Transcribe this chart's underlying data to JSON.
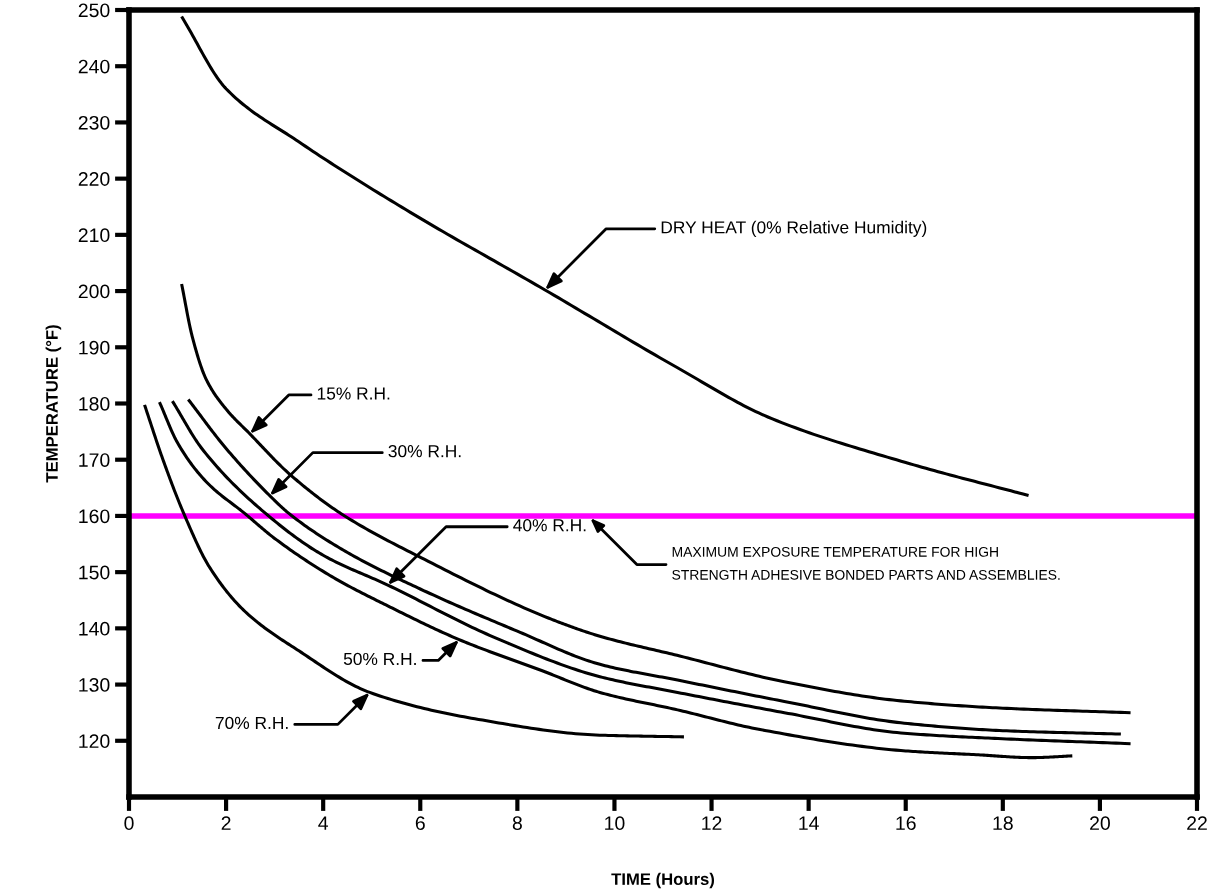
{
  "chart_data": {
    "type": "line",
    "xlabel": "TIME (Hours)",
    "ylabel": "TEMPERATURE (°F)",
    "xlim": [
      0,
      22
    ],
    "ylim": [
      110,
      250
    ],
    "xticks": [
      0,
      2,
      4,
      6,
      8,
      10,
      12,
      14,
      16,
      18,
      20,
      22
    ],
    "yticks": [
      120,
      130,
      140,
      150,
      160,
      170,
      180,
      190,
      200,
      210,
      220,
      230,
      240,
      250
    ],
    "series": [
      {
        "color": "#000000",
        "x": [
          1.1,
          2,
          3.49,
          5.7,
          8.57,
          11.29,
          13.16,
          16,
          18.5
        ],
        "values": [
          248.6,
          236,
          226.6,
          214.5,
          200.2,
          186.4,
          177.6,
          169.5,
          163.7
        ]
      },
      {
        "color": "#000000",
        "x": [
          1.09,
          1.3,
          1.59,
          2,
          2.49,
          3.3,
          4.37,
          6.08,
          8.65,
          9.7,
          11.29,
          13.5,
          15.9,
          18,
          20.6
        ],
        "values": [
          201,
          192,
          184.3,
          179,
          174.6,
          167.5,
          160.4,
          152.3,
          141.8,
          138.6,
          135.2,
          130.5,
          127.1,
          125.8,
          125
        ]
      },
      {
        "color": "#000000",
        "x": [
          1.24,
          2,
          2.9,
          3.3,
          4.5,
          6,
          8,
          9.7,
          11.3,
          13.5,
          15.9,
          18,
          20.4
        ],
        "values": [
          180.5,
          172,
          163.6,
          160.4,
          153.5,
          147,
          139.5,
          133.6,
          130.8,
          127,
          123.2,
          121.8,
          121.2
        ]
      },
      {
        "color": "#000000",
        "x": [
          0.91,
          1.5,
          2.82,
          4,
          5.33,
          7.5,
          9.7,
          11.3,
          13.5,
          15.9,
          17.9,
          20.6
        ],
        "values": [
          180.2,
          172,
          160.4,
          153,
          147.7,
          138.5,
          131.4,
          128.6,
          125,
          121.4,
          120.4,
          119.5
        ]
      },
      {
        "color": "#000000",
        "x": [
          0.64,
          1,
          1.6,
          2.39,
          3,
          4.22,
          5.33,
          6.8,
          8.5,
          9.7,
          11.3,
          13,
          16,
          17.5,
          18.6,
          19.4
        ],
        "values": [
          180,
          173,
          166,
          160.4,
          156,
          149,
          144,
          138,
          132.5,
          128.6,
          125.5,
          122,
          118.2,
          117.5,
          117,
          117.3
        ]
      },
      {
        "color": "#000000",
        "x": [
          0.33,
          0.7,
          1.13,
          1.65,
          2.39,
          3.5,
          4.96,
          7.2,
          9.7,
          11.4
        ],
        "values": [
          179.5,
          170,
          160.4,
          151,
          143,
          136,
          128.6,
          123.8,
          121,
          120.7
        ]
      }
    ],
    "annotations": [
      {
        "text": "DRY HEAT (0% Relative Humidity)",
        "x": 8.57,
        "y": 200.2
      },
      {
        "text": "15% R.H.",
        "x": 2.49,
        "y": 174.6
      },
      {
        "text": "30% R.H.",
        "x": 2.9,
        "y": 163.6
      },
      {
        "text": "40% R.H.",
        "x": 5.33,
        "y": 147.7
      },
      {
        "text": "50% R.H.",
        "x": 6.8,
        "y": 138
      },
      {
        "text": "70% R.H.",
        "x": 4.96,
        "y": 128.6
      }
    ],
    "ref_lines": [
      {
        "axis": "y",
        "value": 160,
        "label": "MAXIMUM EXPOSURE TEMPERATURE FOR HIGH\nSTRENGTH ADHESIVE BONDED PARTS AND ASSEMBLIES.",
        "color": "#ff00ff"
      }
    ]
  }
}
